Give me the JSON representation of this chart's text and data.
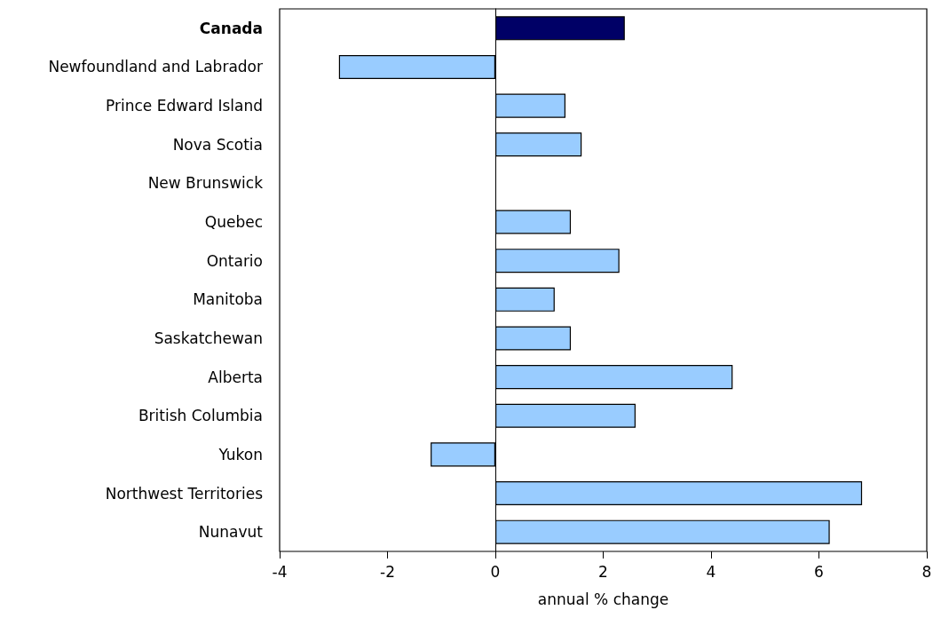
{
  "chart_data": {
    "type": "bar",
    "orientation": "horizontal",
    "xlabel": "annual % change",
    "categories": [
      "Canada",
      "Newfoundland and Labrador",
      "Prince Edward Island",
      "Nova Scotia",
      "New Brunswick",
      "Quebec",
      "Ontario",
      "Manitoba",
      "Saskatchewan",
      "Alberta",
      "British Columbia",
      "Yukon",
      "Northwest Territories",
      "Nunavut"
    ],
    "values": [
      2.4,
      -2.9,
      1.3,
      1.6,
      0,
      1.4,
      2.3,
      1.1,
      1.4,
      4.4,
      2.6,
      -1.2,
      6.8,
      6.2
    ],
    "colors": [
      "#000066",
      "#99ccff",
      "#99ccff",
      "#99ccff",
      "#99ccff",
      "#99ccff",
      "#99ccff",
      "#99ccff",
      "#99ccff",
      "#99ccff",
      "#99ccff",
      "#99ccff",
      "#99ccff",
      "#99ccff"
    ],
    "xlim": [
      -4,
      8
    ],
    "xticks": [
      -4,
      -2,
      0,
      2,
      4,
      6,
      8
    ]
  }
}
